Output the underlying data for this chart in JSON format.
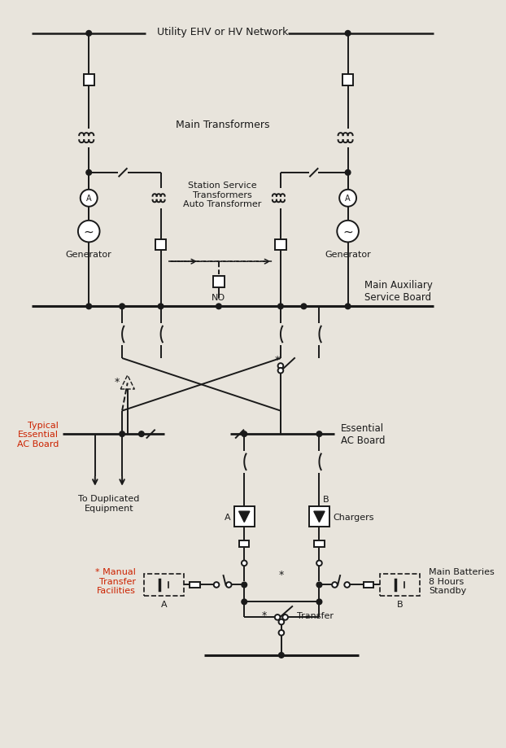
{
  "bg_color": "#e8e4dc",
  "line_color": "#1a1a1a",
  "text_color": "#1a1a1a",
  "blue_text": "#cc2200",
  "fig_width": 6.22,
  "fig_height": 9.2,
  "labels": {
    "utility": "Utility EHV or HV Network",
    "main_transformers": "Main Transformers",
    "station_service": "Station Service\nTransformers\nAuto Transformer",
    "generator_left": "Generator",
    "generator_right": "Generator",
    "main_aux": "Main Auxiliary\nService Board",
    "typical_essential": "Typical\nEssential\nAC Board",
    "essential_ac": "Essential\nAC Board",
    "chargers": "Chargers",
    "to_duplicated": "To Duplicated\nEquipment",
    "manual_transfer": "* Manual\nTransfer\nFacilities",
    "main_batteries": "Main Batteries\n8 Hours\nStandby",
    "transfer": "Transfer",
    "NO": "NO",
    "A_charger": "A",
    "B_charger": "B",
    "A_battery": "A",
    "B_battery": "B"
  }
}
